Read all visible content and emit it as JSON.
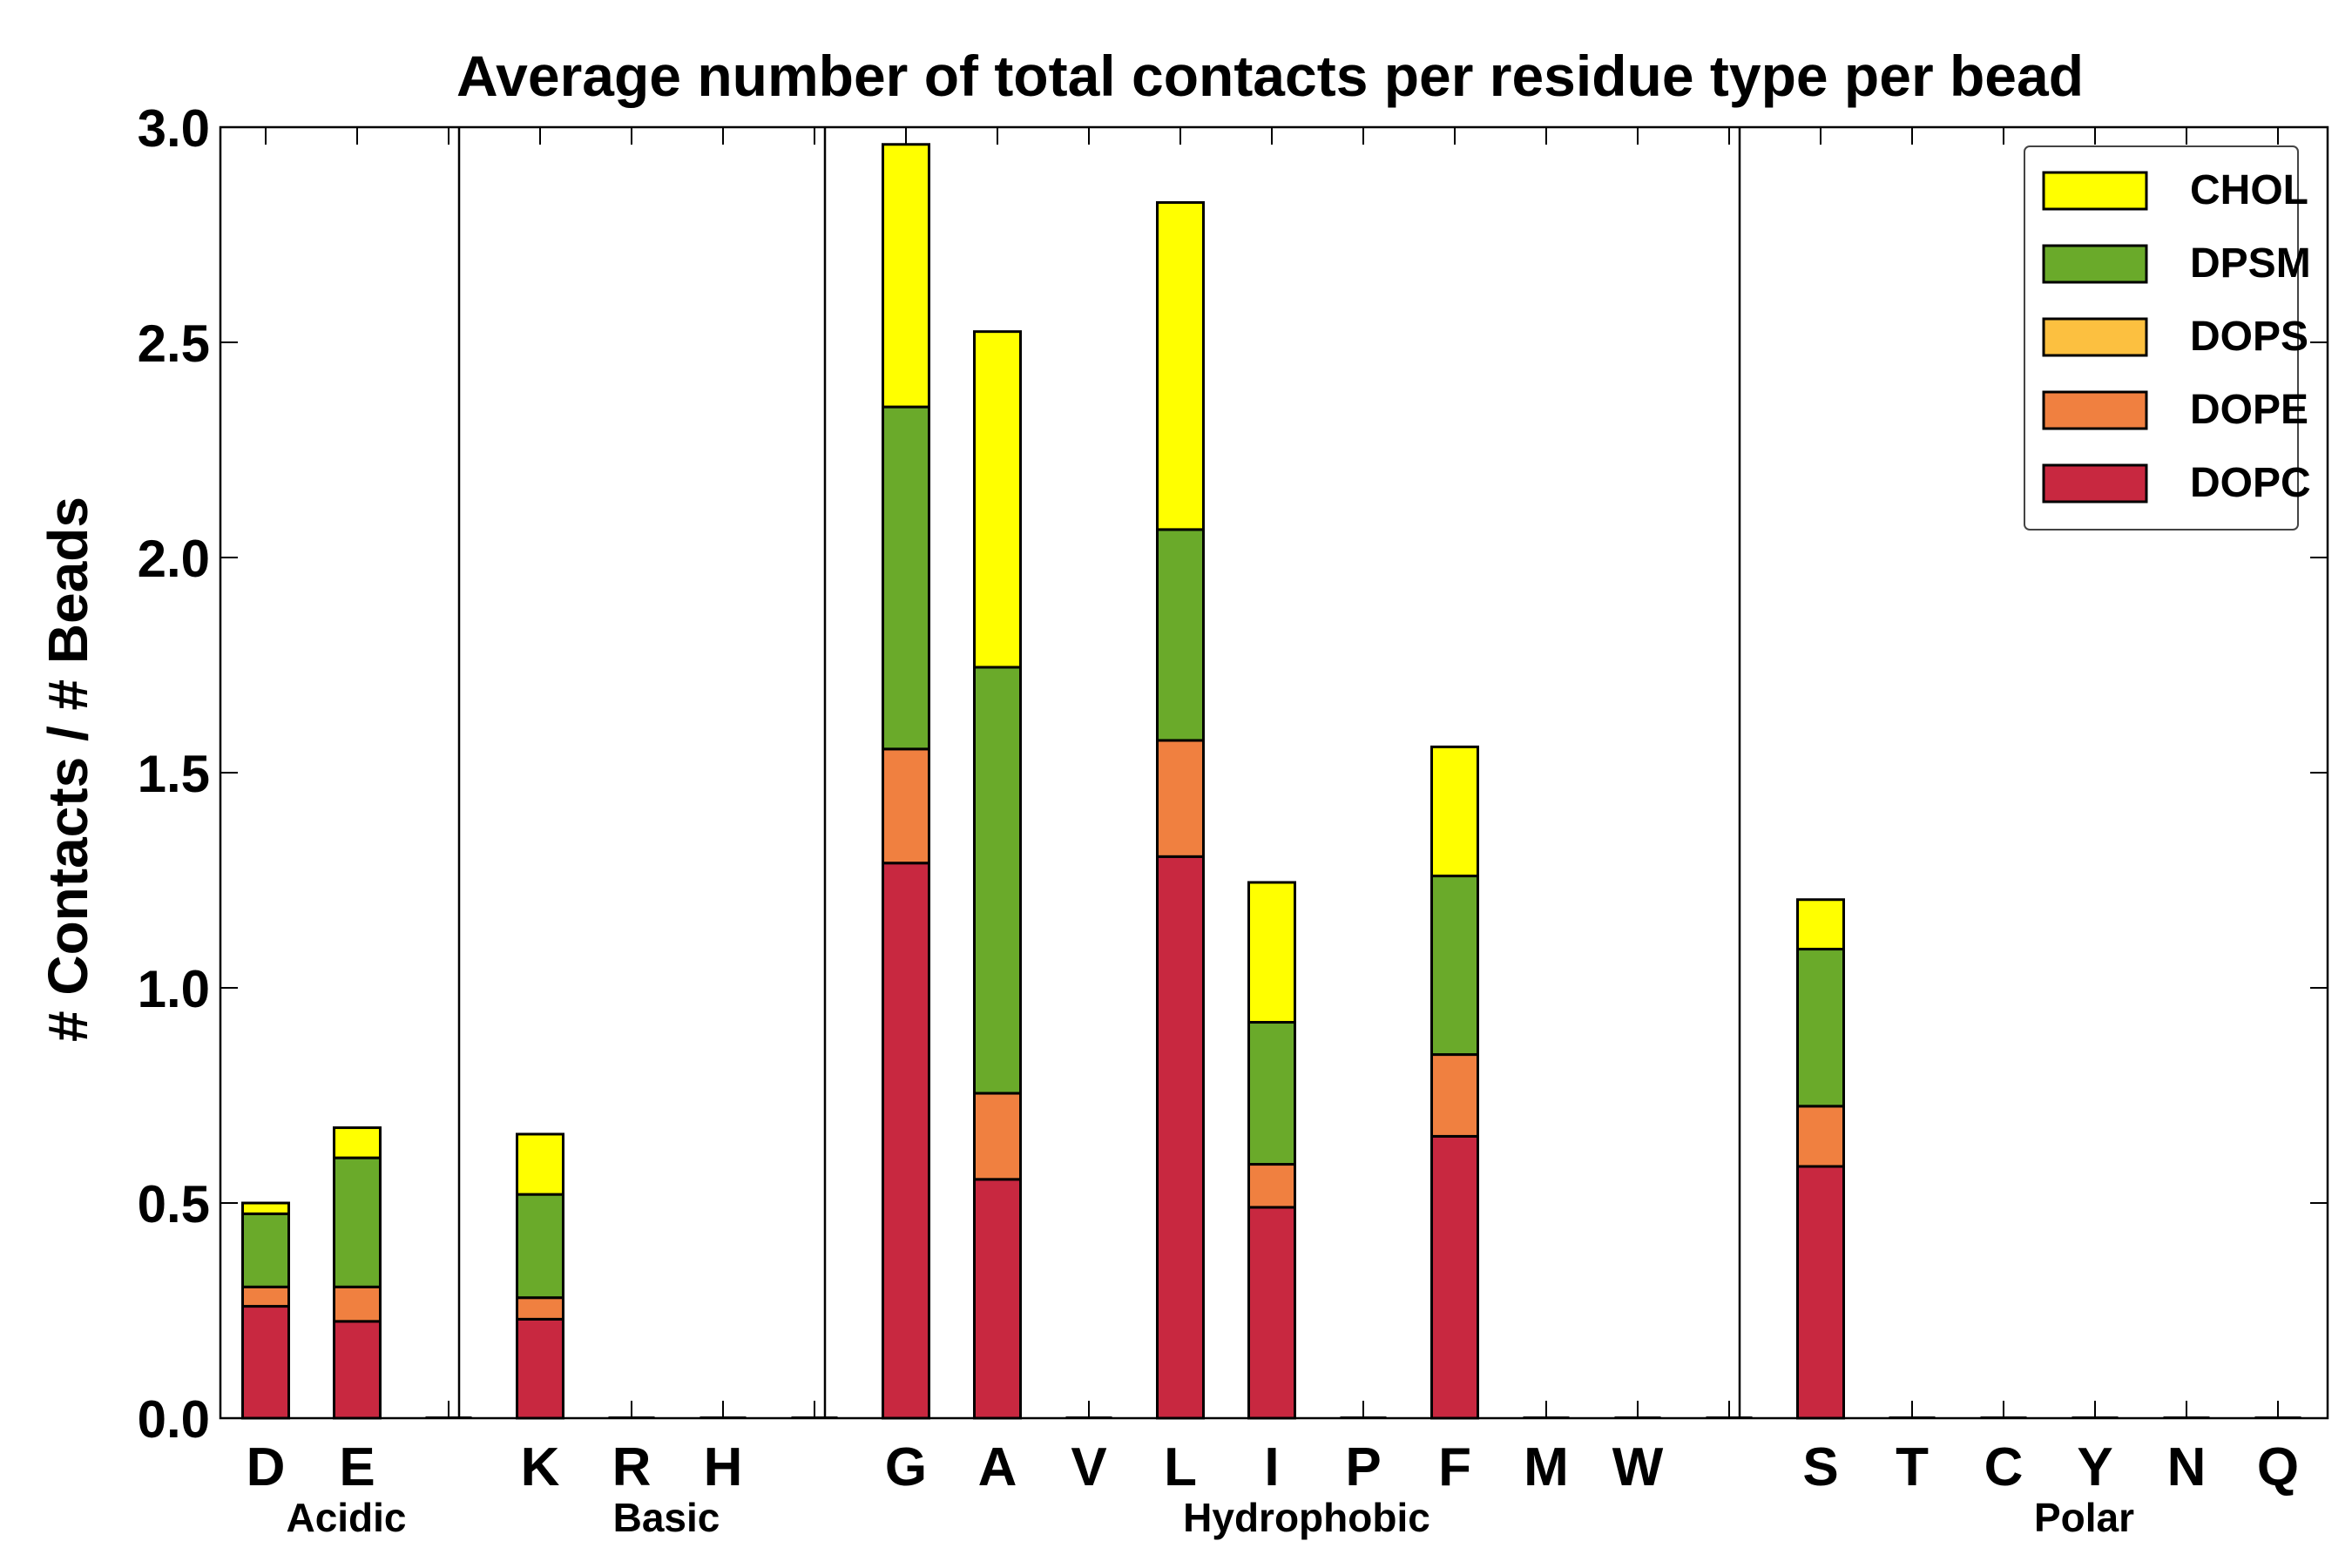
{
  "chart_data": {
    "type": "bar",
    "stacked": true,
    "title": "Average number of total contacts per residue type per bead",
    "ylabel": "# Contacts / # Beads",
    "xlabel": "",
    "ylim": [
      0,
      3.0
    ],
    "yticks": [
      "0.0",
      "0.5",
      "1.0",
      "1.5",
      "2.0",
      "2.5",
      "3.0"
    ],
    "categories": [
      "D",
      "E",
      "",
      "K",
      "R",
      "H",
      "",
      "G",
      "A",
      "V",
      "L",
      "I",
      "P",
      "F",
      "M",
      "W",
      "",
      "S",
      "T",
      "C",
      "Y",
      "N",
      "Q"
    ],
    "groups": [
      {
        "name": "Acidic",
        "members": [
          "D",
          "E"
        ]
      },
      {
        "name": "Basic",
        "members": [
          "K",
          "R",
          "H"
        ]
      },
      {
        "name": "Hydrophobic",
        "members": [
          "G",
          "A",
          "V",
          "L",
          "I",
          "P",
          "F",
          "M",
          "W"
        ]
      },
      {
        "name": "Polar",
        "members": [
          "S",
          "T",
          "C",
          "Y",
          "N",
          "Q"
        ]
      }
    ],
    "legend_position": "top-right",
    "series": [
      {
        "name": "DOPC",
        "color": "#c82840",
        "values": [
          0.26,
          0.225,
          0,
          0.23,
          0,
          0,
          0,
          1.29,
          0.555,
          0,
          1.305,
          0.49,
          0,
          0.655,
          0,
          0,
          0,
          0.585,
          0,
          0,
          0,
          0,
          0
        ]
      },
      {
        "name": "DOPE",
        "color": "#f08040",
        "values": [
          0.045,
          0.08,
          0,
          0.05,
          0,
          0,
          0,
          0.265,
          0.2,
          0,
          0.27,
          0.1,
          0,
          0.19,
          0,
          0,
          0,
          0.14,
          0,
          0,
          0,
          0,
          0
        ]
      },
      {
        "name": "DOPS",
        "color": "#fcc040",
        "values": [
          0,
          0,
          0,
          0,
          0,
          0,
          0,
          0,
          0,
          0,
          0,
          0,
          0,
          0,
          0,
          0,
          0,
          0,
          0,
          0,
          0,
          0,
          0
        ]
      },
      {
        "name": "DPSM",
        "color": "#6aaa2a",
        "values": [
          0.17,
          0.3,
          0,
          0.24,
          0,
          0,
          0,
          0.795,
          0.99,
          0,
          0.49,
          0.33,
          0,
          0.415,
          0,
          0,
          0,
          0.365,
          0,
          0,
          0,
          0,
          0
        ]
      },
      {
        "name": "CHOL",
        "color": "#ffff00",
        "values": [
          0.025,
          0.07,
          0,
          0.14,
          0,
          0,
          0,
          0.61,
          0.78,
          0,
          0.76,
          0.325,
          0,
          0.3,
          0,
          0,
          0,
          0.115,
          0,
          0,
          0,
          0,
          0
        ]
      }
    ],
    "legend_order": [
      "CHOL",
      "DPSM",
      "DOPS",
      "DOPE",
      "DOPC"
    ]
  }
}
